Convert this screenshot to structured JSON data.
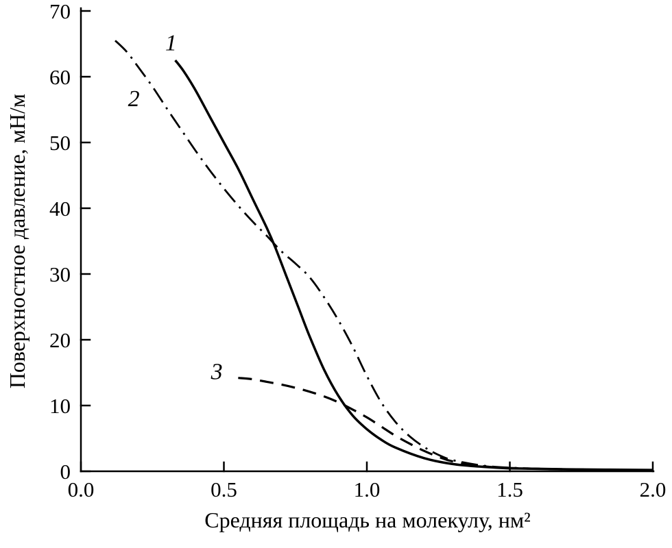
{
  "chart_data": {
    "type": "line",
    "title": "",
    "xlabel": "Средняя площадь на молекулу, нм²",
    "ylabel": "Поверхностное давление, мН/м",
    "xlim": [
      0,
      2
    ],
    "ylim": [
      0,
      70
    ],
    "grid": false,
    "legend_position": "inline-curve-labels",
    "colors": {
      "line": "#000000",
      "background": "#ffffff"
    },
    "x_ticks": {
      "values": [
        0,
        0.5,
        1.0,
        1.5,
        2.0
      ],
      "labels": [
        "0.0",
        "0.5",
        "1.0",
        "1.5",
        "2.0"
      ]
    },
    "y_ticks": {
      "values": [
        0,
        10,
        20,
        30,
        40,
        50,
        60,
        70
      ],
      "labels": [
        "0",
        "10",
        "20",
        "30",
        "40",
        "50",
        "60",
        "70"
      ]
    },
    "series": [
      {
        "name": "1",
        "style": "solid",
        "label_pos": [
          0.315,
          64.0
        ],
        "points": [
          [
            0.33,
            62.5
          ],
          [
            0.36,
            60.8
          ],
          [
            0.4,
            58.0
          ],
          [
            0.45,
            54.0
          ],
          [
            0.5,
            50.0
          ],
          [
            0.55,
            46.0
          ],
          [
            0.6,
            41.5
          ],
          [
            0.65,
            37.0
          ],
          [
            0.68,
            34.0
          ],
          [
            0.72,
            29.5
          ],
          [
            0.76,
            25.0
          ],
          [
            0.8,
            20.5
          ],
          [
            0.85,
            15.5
          ],
          [
            0.9,
            11.5
          ],
          [
            0.95,
            8.5
          ],
          [
            1.0,
            6.4
          ],
          [
            1.05,
            4.8
          ],
          [
            1.1,
            3.6
          ],
          [
            1.2,
            2.0
          ],
          [
            1.3,
            1.1
          ],
          [
            1.4,
            0.7
          ],
          [
            1.5,
            0.45
          ],
          [
            1.7,
            0.3
          ],
          [
            2.0,
            0.2
          ]
        ]
      },
      {
        "name": "2",
        "style": "dash-dot",
        "label_pos": [
          0.185,
          55.5
        ],
        "points": [
          [
            0.12,
            65.5
          ],
          [
            0.16,
            63.8
          ],
          [
            0.2,
            61.5
          ],
          [
            0.25,
            58.5
          ],
          [
            0.3,
            55.2
          ],
          [
            0.35,
            52.0
          ],
          [
            0.4,
            48.8
          ],
          [
            0.45,
            45.8
          ],
          [
            0.5,
            43.0
          ],
          [
            0.55,
            40.4
          ],
          [
            0.6,
            38.0
          ],
          [
            0.65,
            35.8
          ],
          [
            0.7,
            33.5
          ],
          [
            0.75,
            31.6
          ],
          [
            0.8,
            29.5
          ],
          [
            0.85,
            26.5
          ],
          [
            0.9,
            23.0
          ],
          [
            0.95,
            19.0
          ],
          [
            1.0,
            14.5
          ],
          [
            1.05,
            10.5
          ],
          [
            1.1,
            7.5
          ],
          [
            1.15,
            5.3
          ],
          [
            1.2,
            3.7
          ],
          [
            1.25,
            2.5
          ],
          [
            1.3,
            1.7
          ],
          [
            1.4,
            0.9
          ],
          [
            1.5,
            0.55
          ],
          [
            1.7,
            0.3
          ],
          [
            2.0,
            0.2
          ]
        ]
      },
      {
        "name": "3",
        "style": "dashed",
        "label_pos": [
          0.475,
          14.0
        ],
        "points": [
          [
            0.55,
            14.2
          ],
          [
            0.6,
            14.0
          ],
          [
            0.65,
            13.6
          ],
          [
            0.7,
            13.2
          ],
          [
            0.75,
            12.7
          ],
          [
            0.8,
            12.1
          ],
          [
            0.85,
            11.4
          ],
          [
            0.9,
            10.5
          ],
          [
            0.95,
            9.4
          ],
          [
            1.0,
            8.2
          ],
          [
            1.05,
            6.8
          ],
          [
            1.1,
            5.4
          ],
          [
            1.15,
            4.2
          ],
          [
            1.2,
            3.1
          ],
          [
            1.25,
            2.2
          ],
          [
            1.3,
            1.5
          ],
          [
            1.4,
            0.8
          ],
          [
            1.5,
            0.5
          ],
          [
            1.7,
            0.3
          ],
          [
            2.0,
            0.15
          ]
        ]
      }
    ]
  }
}
